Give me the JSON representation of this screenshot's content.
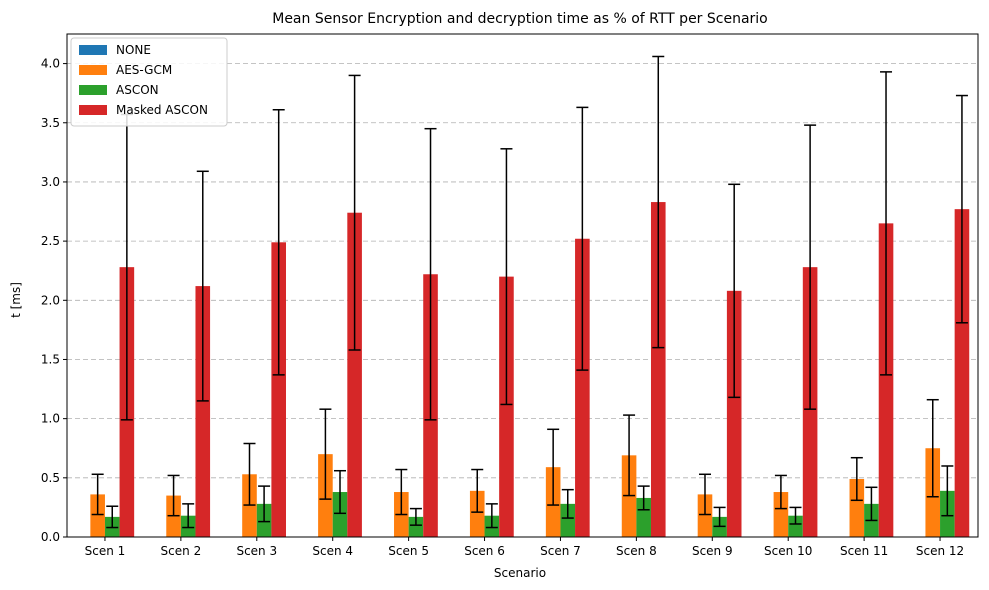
{
  "chart_data": {
    "type": "bar",
    "title": "Mean Sensor Encryption and decryption time as % of RTT per Scenario",
    "xlabel": "Scenario",
    "ylabel": "t [ms]",
    "ylim": [
      0,
      4.25
    ],
    "yticks": [
      "0.0",
      "0.5",
      "1.0",
      "1.5",
      "2.0",
      "2.5",
      "3.0",
      "3.5",
      "4.0"
    ],
    "grid": "y-dashed",
    "legend_position": "top-left",
    "categories": [
      "Scen 1",
      "Scen 2",
      "Scen 3",
      "Scen 4",
      "Scen 5",
      "Scen 6",
      "Scen 7",
      "Scen 8",
      "Scen 9",
      "Scen 10",
      "Scen 11",
      "Scen 12"
    ],
    "series": [
      {
        "name": "NONE",
        "color": "#1f77b4",
        "values": [
          0.003,
          0.003,
          0.003,
          0.003,
          0.003,
          0.003,
          0.003,
          0.003,
          0.003,
          0.003,
          0.003,
          0.003
        ],
        "errors": null
      },
      {
        "name": "AES-GCM",
        "color": "#ff7f0e",
        "values": [
          0.36,
          0.35,
          0.53,
          0.7,
          0.38,
          0.39,
          0.59,
          0.69,
          0.36,
          0.38,
          0.49,
          0.75
        ],
        "errors": [
          0.17,
          0.17,
          0.26,
          0.38,
          0.19,
          0.18,
          0.32,
          0.34,
          0.17,
          0.14,
          0.18,
          0.41
        ]
      },
      {
        "name": "ASCON",
        "color": "#2ca02c",
        "values": [
          0.17,
          0.18,
          0.28,
          0.38,
          0.17,
          0.18,
          0.28,
          0.33,
          0.17,
          0.18,
          0.28,
          0.39
        ],
        "errors": [
          0.09,
          0.1,
          0.15,
          0.18,
          0.07,
          0.1,
          0.12,
          0.1,
          0.08,
          0.07,
          0.14,
          0.21
        ]
      },
      {
        "name": "Masked ASCON",
        "color": "#d62728",
        "values": [
          2.28,
          2.12,
          2.49,
          2.74,
          2.22,
          2.2,
          2.52,
          2.83,
          2.08,
          2.28,
          2.65,
          2.77
        ],
        "errors": [
          1.29,
          0.97,
          1.12,
          1.16,
          1.23,
          1.08,
          1.11,
          1.23,
          0.9,
          1.2,
          1.28,
          0.96
        ]
      }
    ]
  }
}
